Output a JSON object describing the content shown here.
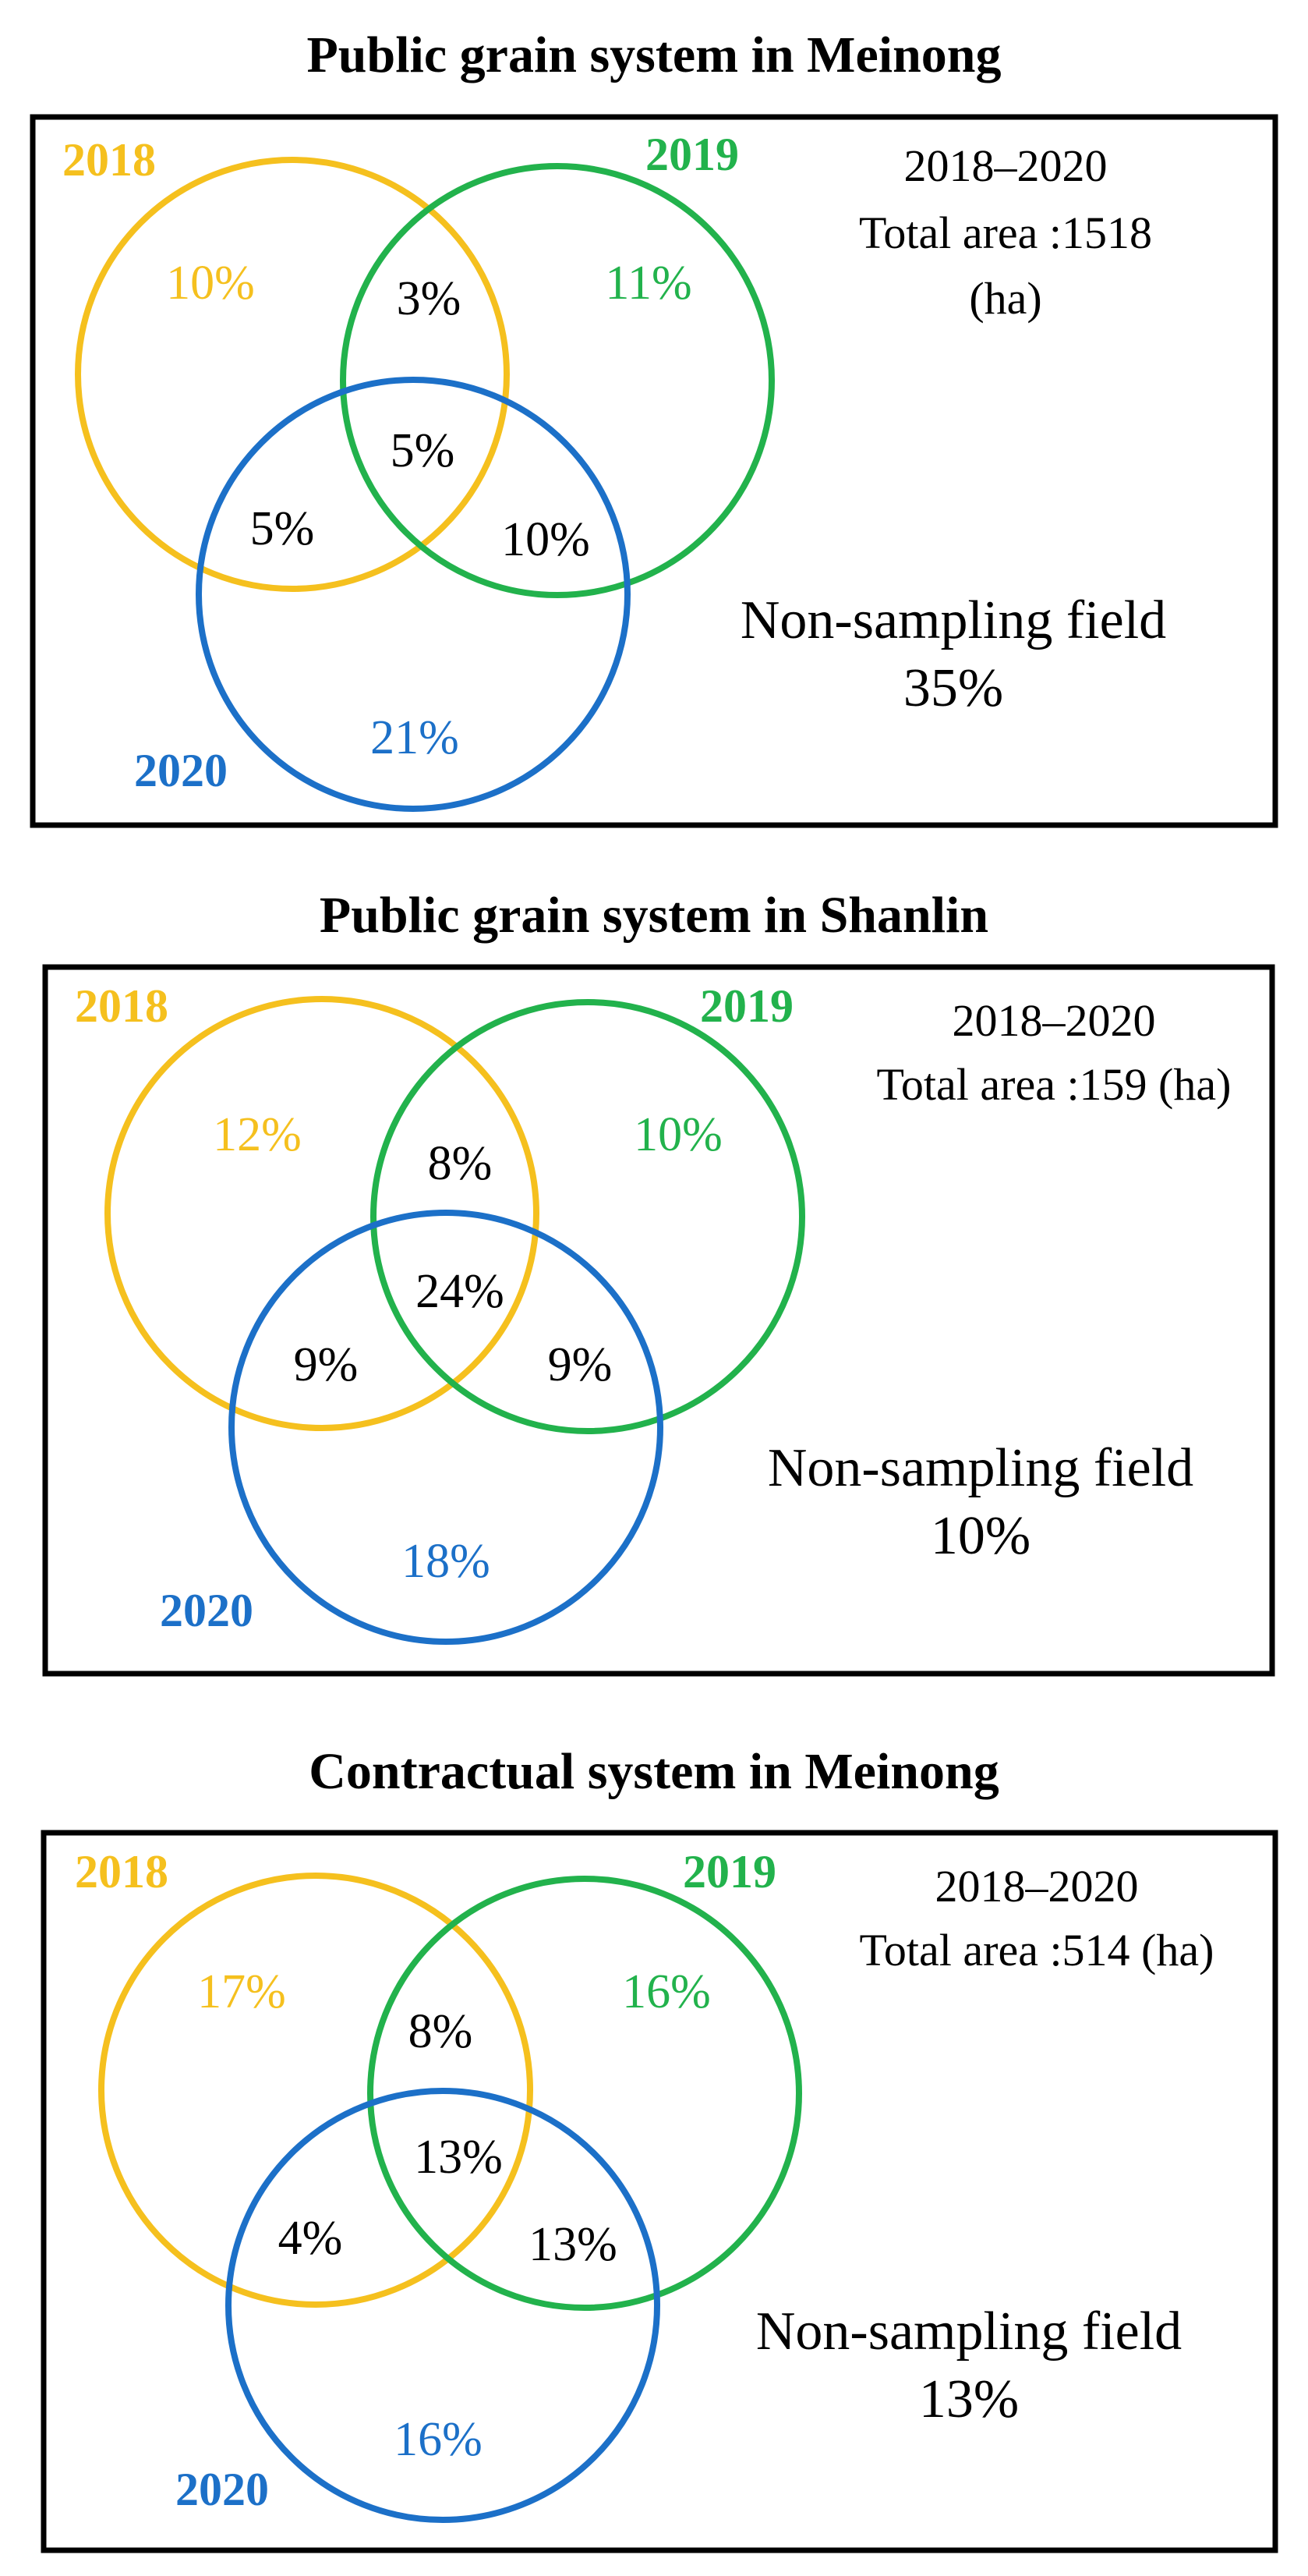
{
  "colors": {
    "y2018": "#F5C01E",
    "y2019": "#22B24C",
    "y2020": "#1C70C8",
    "frame": "#000000",
    "text": "#000000"
  },
  "panels": [
    {
      "title": "Public grain system in Meinong",
      "labels": {
        "y2018": "2018",
        "y2019": "2019",
        "y2020": "2020"
      },
      "info": {
        "period": "2018–2020",
        "line2": "Total area :1518",
        "line3": "(ha)"
      },
      "values": {
        "only2018": "10%",
        "only2019": "11%",
        "only2020": "21%",
        "y2018_2019": "3%",
        "all": "5%",
        "y2018_2020": "5%",
        "y2019_2020": "10%"
      },
      "non_sampling": {
        "label": "Non-sampling field",
        "value": "35%"
      }
    },
    {
      "title": "Public grain system in Shanlin",
      "labels": {
        "y2018": "2018",
        "y2019": "2019",
        "y2020": "2020"
      },
      "info": {
        "period": "2018–2020",
        "line2": "Total area :159 (ha)"
      },
      "values": {
        "only2018": "12%",
        "only2019": "10%",
        "only2020": "18%",
        "y2018_2019": "8%",
        "all": "24%",
        "y2018_2020": "9%",
        "y2019_2020": "9%"
      },
      "non_sampling": {
        "label": "Non-sampling field",
        "value": "10%"
      }
    },
    {
      "title": "Contractual system in Meinong",
      "labels": {
        "y2018": "2018",
        "y2019": "2019",
        "y2020": "2020"
      },
      "info": {
        "period": "2018–2020",
        "line2": "Total area :514 (ha)"
      },
      "values": {
        "only2018": "17%",
        "only2019": "16%",
        "only2020": "16%",
        "y2018_2019": "8%",
        "all": "13%",
        "y2018_2020": "4%",
        "y2019_2020": "13%"
      },
      "non_sampling": {
        "label": "Non-sampling field",
        "value": "13%"
      }
    }
  ]
}
